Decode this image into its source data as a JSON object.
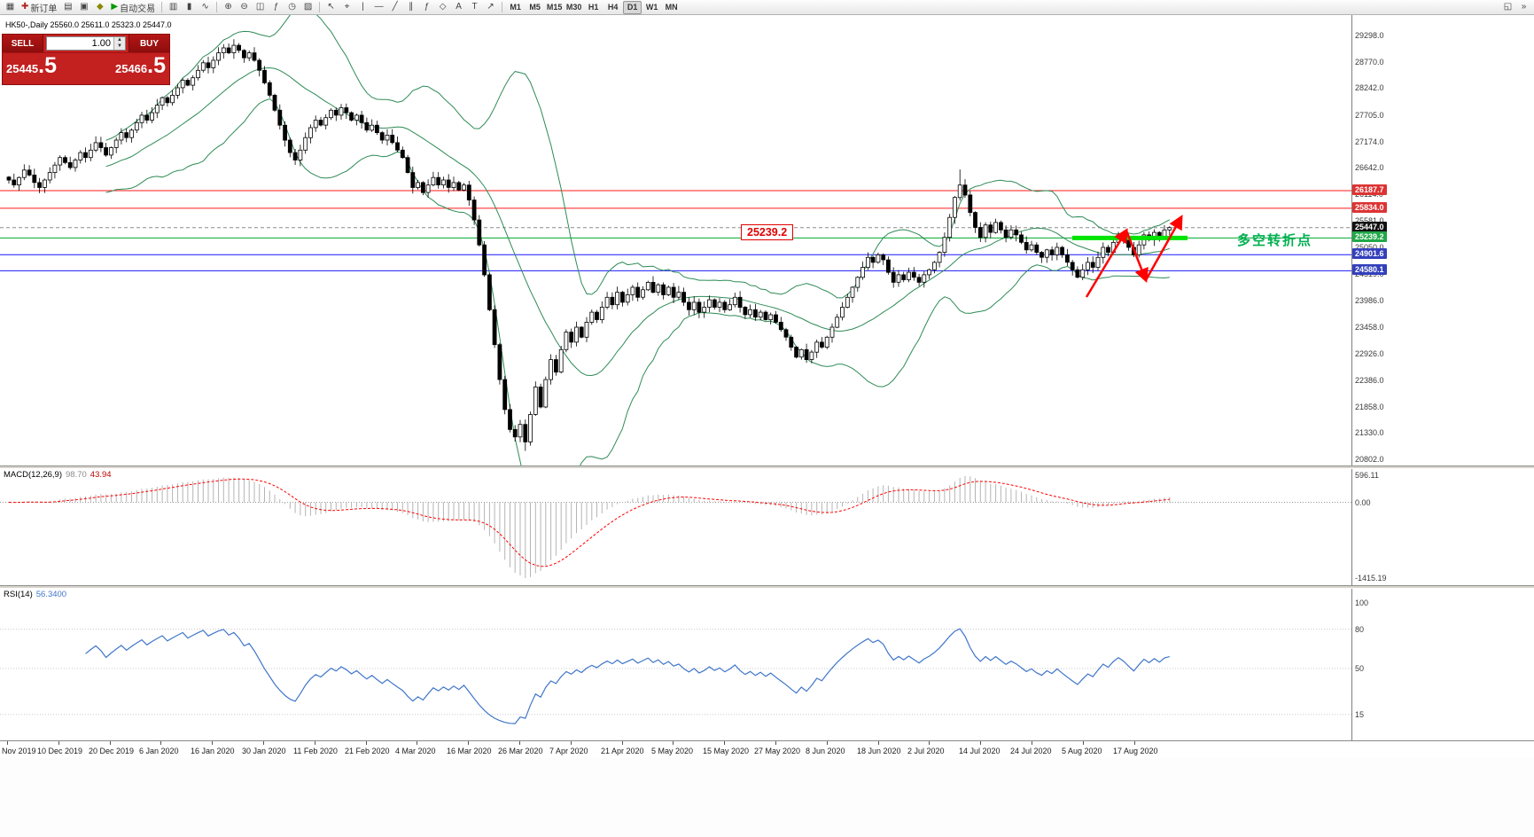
{
  "colors": {
    "band_green": "#2e8b57",
    "resistance_red": "#ff1a1a",
    "support_blue": "#1a1aff",
    "pivot_green": "#00a830",
    "pivot_thick_green": "#00e400",
    "arrow_red": "#ff0000",
    "macd_hist": "#b4b4b4",
    "macd_signal": "#ff0000",
    "rsi_blue": "#3f76c9",
    "trade_red": "#c32020",
    "tag_red": "#dd3333",
    "tag_blue": "#3340bb",
    "tag_green": "#21a848",
    "tag_black": "#111111"
  },
  "toolbar": {
    "items_left": [
      {
        "name": "new-chart-button",
        "glyph": "▦"
      },
      {
        "name": "new-order-button",
        "glyph": "✚",
        "glyph_color": "#b22222",
        "label": "新订单"
      },
      {
        "name": "market-watch-button",
        "glyph": "▤"
      },
      {
        "name": "data-window-button",
        "glyph": "▣"
      },
      {
        "name": "navigator-button",
        "glyph": "◆",
        "glyph_color": "#888800"
      },
      {
        "name": "autotrading-button",
        "glyph": "▶",
        "glyph_color": "#009900",
        "label": "自动交易"
      },
      {
        "name": "separator"
      },
      {
        "name": "bar-chart-button",
        "glyph": "▥"
      },
      {
        "name": "candlestick-chart-button",
        "glyph": "▮"
      },
      {
        "name": "line-chart-button",
        "glyph": "∿"
      },
      {
        "name": "separator"
      },
      {
        "name": "zoom-in-button",
        "glyph": "⊕"
      },
      {
        "name": "zoom-out-button",
        "glyph": "⊖"
      },
      {
        "name": "tile-windows-button",
        "glyph": "◫"
      },
      {
        "name": "indicators-button",
        "glyph": "ƒ"
      },
      {
        "name": "periods-button",
        "glyph": "◷"
      },
      {
        "name": "template-button",
        "glyph": "▨"
      },
      {
        "name": "separator"
      },
      {
        "name": "cursor-button",
        "glyph": "↖"
      },
      {
        "name": "crosshair-button",
        "glyph": "⌖"
      },
      {
        "name": "vertical-line-button",
        "glyph": "|"
      },
      {
        "name": "horizontal-line-button",
        "glyph": "—"
      },
      {
        "name": "trendline-button",
        "glyph": "╱"
      },
      {
        "name": "channel-button",
        "glyph": "∥"
      },
      {
        "name": "fibonacci-button",
        "glyph": "ƒ"
      },
      {
        "name": "shapes-button",
        "glyph": "◇"
      },
      {
        "name": "text-button",
        "glyph": "A"
      },
      {
        "name": "label-button",
        "glyph": "T"
      },
      {
        "name": "arrows-button",
        "glyph": "↗"
      },
      {
        "name": "separator"
      }
    ],
    "timeframes": [
      "M1",
      "M5",
      "M15",
      "M30",
      "H1",
      "H4",
      "D1",
      "W1",
      "MN"
    ],
    "active_timeframe": "D1",
    "items_right": [
      {
        "name": "dock-windows-button",
        "glyph": "◱"
      },
      {
        "name": "toolbar-overflow-button",
        "glyph": "»"
      }
    ]
  },
  "chart": {
    "symbol_line": "HK50-,Daily 25560.0 25611.0 25323.0 25447.0",
    "trade_panel": {
      "sell_label": "SELL",
      "buy_label": "BUY",
      "volume": "1.00",
      "sell_price_main": "25445",
      "sell_price_frac": ".5",
      "buy_price_main": "25466",
      "buy_price_frac": ".5"
    }
  },
  "macd_panel": {
    "name": "MACD(12,26,9)",
    "main_value": "98.70",
    "signal_value": "43.94",
    "axis_max": "596.11",
    "axis_zero": "0.00",
    "axis_min": "-1415.19"
  },
  "rsi_panel": {
    "name": "RSI(14)",
    "value": "56.3400",
    "axis": [
      {
        "v": 100,
        "label": "100"
      },
      {
        "v": 80,
        "label": "80"
      },
      {
        "v": 50,
        "label": "50"
      },
      {
        "v": 15,
        "label": "15"
      }
    ],
    "level_lines": [
      80,
      50,
      15
    ]
  },
  "chart_data": {
    "type": "candlestick",
    "symbol": "HK50-",
    "timeframe": "Daily",
    "last_ohlc": {
      "open": 25560.0,
      "high": 25611.0,
      "low": 25323.0,
      "close": 25447.0
    },
    "ylim": [
      20802,
      29298
    ],
    "bollinger": {
      "period": 20,
      "deviation": 2
    },
    "bid_price": 25447.0,
    "callout_text": "25239.2",
    "annotation_text": "多空转折点",
    "pivot_segment_price": 25239.2,
    "trend_arrow_points": [
      [
        1226,
        318
      ],
      [
        1271,
        243
      ],
      [
        1293,
        299
      ],
      [
        1333,
        228
      ]
    ],
    "levels": [
      {
        "price": 26187.7,
        "label": "26187.7",
        "type": "resistance",
        "color_key": "tag_red"
      },
      {
        "price": 25834.0,
        "label": "25834.0",
        "type": "resistance",
        "color_key": "tag_red"
      },
      {
        "price": 25447.0,
        "label": "25447.0",
        "type": "current",
        "color_key": "tag_black"
      },
      {
        "price": 25239.2,
        "label": "25239.2",
        "type": "pivot",
        "color_key": "tag_green"
      },
      {
        "price": 24901.6,
        "label": "24901.6",
        "type": "support",
        "color_key": "tag_blue"
      },
      {
        "price": 24580.1,
        "label": "24580.1",
        "type": "support",
        "color_key": "tag_blue"
      }
    ],
    "y_ticklabels": [
      "29298.0",
      "28770.0",
      "28242.0",
      "27705.0",
      "27174.0",
      "26642.0",
      "26114.0",
      "25581.0",
      "25050.0",
      "24519.0",
      "23986.0",
      "23458.0",
      "22926.0",
      "22386.0",
      "21858.0",
      "21330.0",
      "20802.0"
    ],
    "x_ticklabels": [
      "Nov 2019",
      "10 Dec 2019",
      "20 Dec 2019",
      "6 Jan 2020",
      "16 Jan 2020",
      "30 Jan 2020",
      "11 Feb 2020",
      "21 Feb 2020",
      "4 Mar 2020",
      "16 Mar 2020",
      "26 Mar 2020",
      "7 Apr 2020",
      "21 Apr 2020",
      "5 May 2020",
      "15 May 2020",
      "27 May 2020",
      "8 Jun 2020",
      "18 Jun 2020",
      "2 Jul 2020",
      "14 Jul 2020",
      "24 Jul 2020",
      "5 Aug 2020",
      "17 Aug 2020"
    ],
    "closes": [
      26400,
      26300,
      26450,
      26600,
      26500,
      26350,
      26250,
      26400,
      26550,
      26700,
      26850,
      26750,
      26650,
      26800,
      26950,
      26850,
      27000,
      27150,
      27050,
      26900,
      27050,
      27200,
      27350,
      27250,
      27400,
      27550,
      27700,
      27600,
      27750,
      27900,
      28050,
      27950,
      28100,
      28250,
      28400,
      28300,
      28450,
      28600,
      28750,
      28650,
      28800,
      28950,
      29050,
      28950,
      29100,
      29000,
      28850,
      28950,
      28800,
      28600,
      28350,
      28100,
      27800,
      27500,
      27200,
      26950,
      26800,
      27000,
      27250,
      27450,
      27600,
      27500,
      27650,
      27800,
      27700,
      27850,
      27750,
      27600,
      27700,
      27550,
      27400,
      27500,
      27350,
      27200,
      27300,
      27150,
      27000,
      26850,
      26550,
      26250,
      26350,
      26150,
      26300,
      26450,
      26300,
      26400,
      26250,
      26350,
      26200,
      26300,
      26000,
      25600,
      25100,
      24500,
      23800,
      23100,
      22400,
      21800,
      21400,
      21250,
      21500,
      21150,
      21700,
      22250,
      21850,
      22400,
      22800,
      22550,
      23000,
      23350,
      23150,
      23450,
      23250,
      23550,
      23750,
      23600,
      23850,
      24050,
      23900,
      24150,
      23950,
      24100,
      24250,
      24050,
      24200,
      24350,
      24150,
      24300,
      24100,
      24250,
      24050,
      24150,
      23950,
      23800,
      23950,
      23750,
      23850,
      24000,
      23850,
      23950,
      23800,
      23900,
      24050,
      23850,
      23700,
      23800,
      23650,
      23750,
      23600,
      23700,
      23550,
      23400,
      23250,
      23050,
      22850,
      23000,
      22800,
      22950,
      23150,
      23050,
      23250,
      23450,
      23650,
      23850,
      24050,
      24250,
      24450,
      24650,
      24850,
      24750,
      24900,
      24800,
      24550,
      24350,
      24500,
      24400,
      24550,
      24450,
      24350,
      24500,
      24600,
      24750,
      24950,
      25250,
      25650,
      26050,
      26300,
      26100,
      25750,
      25450,
      25250,
      25500,
      25350,
      25550,
      25400,
      25250,
      25400,
      25300,
      25150,
      25000,
      25100,
      24950,
      24850,
      25000,
      24900,
      25050,
      24900,
      24750,
      24600,
      24450,
      24600,
      24750,
      24650,
      24850,
      25050,
      24950,
      25150,
      25300,
      25200,
      25050,
      24900,
      25100,
      25300,
      25200,
      25350,
      25250,
      25400,
      25447
    ],
    "indicators": [
      {
        "type": "MACD",
        "params": [
          12,
          26,
          9
        ],
        "display_values": [
          98.7,
          43.94
        ]
      },
      {
        "type": "RSI",
        "params": [
          14
        ],
        "display_value": 56.34
      }
    ]
  }
}
